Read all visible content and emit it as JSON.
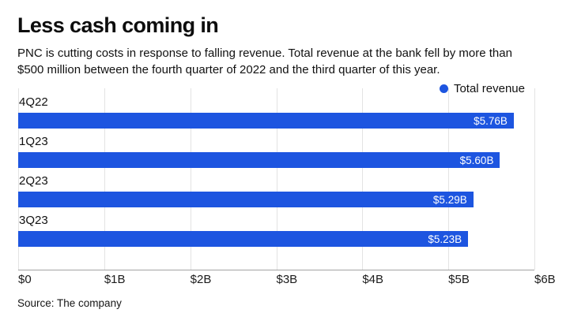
{
  "header": {
    "title": "Less cash coming in",
    "subtitle": "PNC is cutting costs in response to falling revenue. Total revenue at the bank fell by more than $500 million between the fourth quarter of 2022 and the third quarter of this year."
  },
  "legend": {
    "label": "Total revenue",
    "dot_color": "#1d55e0"
  },
  "chart_data": {
    "type": "bar",
    "orientation": "horizontal",
    "title": "Less cash coming in",
    "series_name": "Total revenue",
    "categories": [
      "4Q22",
      "1Q23",
      "2Q23",
      "3Q23"
    ],
    "values": [
      5.76,
      5.6,
      5.29,
      5.23
    ],
    "value_labels": [
      "$5.76B",
      "$5.60B",
      "$5.29B",
      "$5.23B"
    ],
    "x_ticks": [
      "$0",
      "$1B",
      "$2B",
      "$3B",
      "$4B",
      "$5B",
      "$6B"
    ],
    "xlim": [
      0,
      6
    ],
    "grid": true,
    "legend_position": "top-right",
    "bar_color": "#1d55e0",
    "gridline_color": "#e3e3e3",
    "axis_line_color": "#a3a3a3"
  },
  "footer": {
    "source": "Source: The company"
  }
}
